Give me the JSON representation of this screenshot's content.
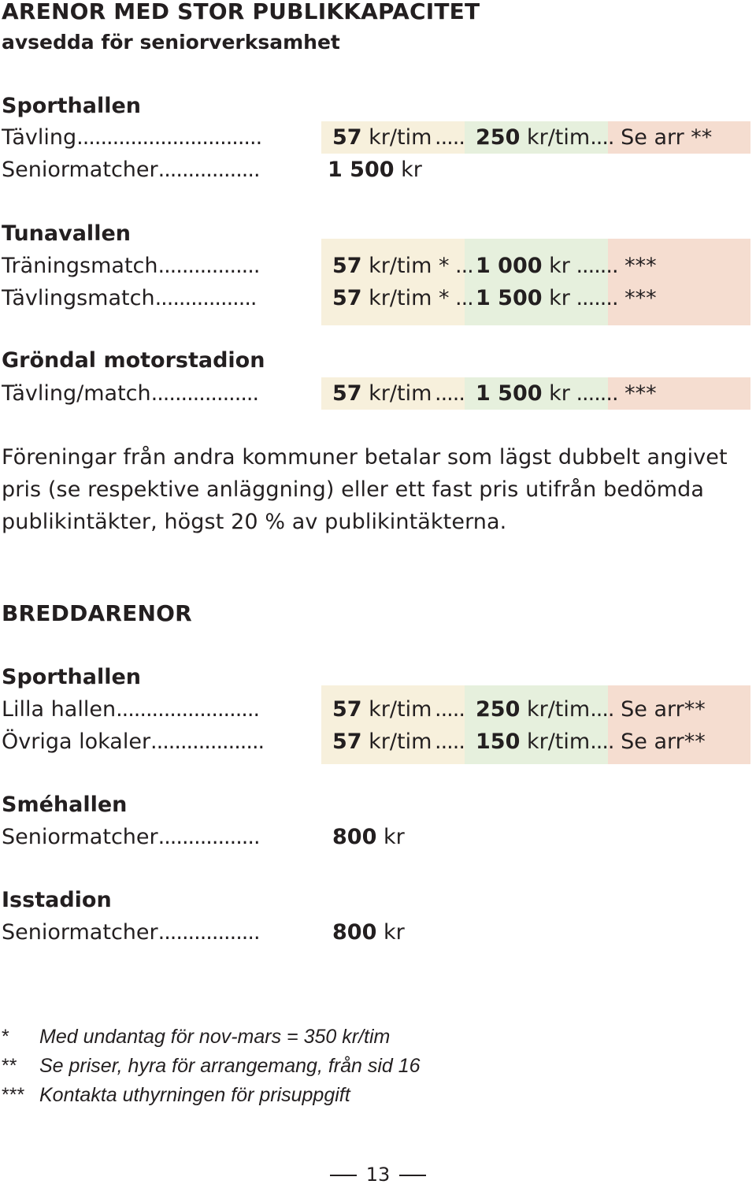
{
  "arenas": {
    "heading": "ARENOR MED STOR PUBLIKKAPACITET",
    "subheading": "avsedda för seniorverksamhet",
    "sporthallen": {
      "title": "Sporthallen",
      "rows": [
        {
          "label": "Tävling",
          "dots": "...............................",
          "v1": "57",
          "u1": " kr/tim",
          "d2": " .....",
          "v2": "250",
          "u2": " kr/tim",
          "d3": "....",
          "v3": " Se arr **"
        },
        {
          "label": "Seniormatcher",
          "dots": ".................",
          "v1": " 1 500",
          "u1": " kr"
        }
      ]
    },
    "tunavallen": {
      "title": "Tunavallen",
      "rows": [
        {
          "label": "Träningsmatch",
          "dots": ".................",
          "v1": "57",
          "u1": " kr/tim *",
          "d2": " ...",
          "v2": "1 000",
          "u2": " kr",
          "d3": " .......",
          "v3": " ***"
        },
        {
          "label": "Tävlingsmatch",
          "dots": ".................",
          "v1": "57",
          "u1": " kr/tim *",
          "d2": " ...",
          "v2": "1 500",
          "u2": " kr",
          "d3": " .......",
          "v3": " ***"
        }
      ]
    },
    "grondal": {
      "title": "Gröndal motorstadion",
      "rows": [
        {
          "label": "Tävling/match",
          "dots": "..................",
          "v1": "57",
          "u1": " kr/tim",
          "d2": " .....",
          "v2": "1 500",
          "u2": " kr",
          "d3": " .......",
          "v3": " ***"
        }
      ]
    }
  },
  "paragraph": "Föreningar från andra kommuner betalar som lägst dubbelt angivet pris (se respektive anläggning) eller ett fast pris utifrån bedömda publikintäkter, högst 20 % av publikintäkterna.",
  "breddarenor": {
    "heading": "BREDDARENOR",
    "sporthallen": {
      "title": "Sporthallen",
      "rows": [
        {
          "label": "Lilla hallen",
          "dots": "........................",
          "v1": "57",
          "u1": " kr/tim",
          "d2": " .....",
          "v2": "250",
          "u2": " kr/tim",
          "d3": "....",
          "v3": " Se arr**"
        },
        {
          "label": "Övriga lokaler",
          "dots": "...................",
          "v1": "57",
          "u1": " kr/tim",
          "d2": " .....",
          "v2": "150",
          "u2": " kr/tim",
          "d3": "....",
          "v3": " Se arr**"
        }
      ]
    },
    "smehallen": {
      "title": "Sméhallen",
      "rows": [
        {
          "label": "Seniormatcher",
          "dots": ".................",
          "v1": "800",
          "u1": " kr"
        }
      ]
    },
    "isstadion": {
      "title": "Isstadion",
      "rows": [
        {
          "label": "Seniormatcher",
          "dots": ".................",
          "v1": "800",
          "u1": " kr"
        }
      ]
    }
  },
  "footnotes": [
    {
      "mark": "*",
      "text": "Med undantag för nov-mars = 350 kr/tim"
    },
    {
      "mark": "**",
      "text": "Se priser, hyra för arrangemang, från sid 16"
    },
    {
      "mark": "***",
      "text": "Kontakta uthyrningen för prisuppgift"
    }
  ],
  "page_number": "13"
}
